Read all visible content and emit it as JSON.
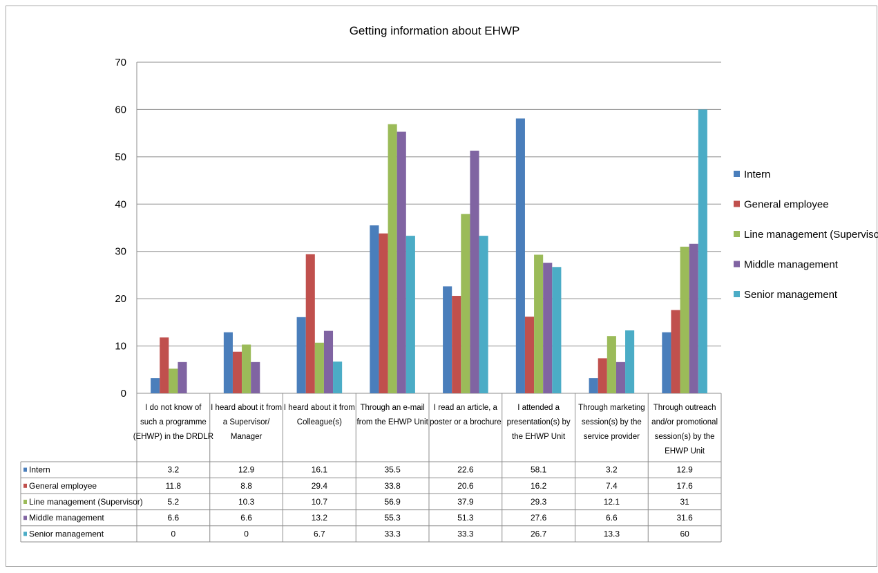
{
  "chart_data": {
    "type": "bar",
    "title": "Getting information about EHWP",
    "ylim": [
      0,
      70
    ],
    "yticks": [
      0,
      10,
      20,
      30,
      40,
      50,
      60,
      70
    ],
    "grid": true,
    "legend_position": "right",
    "data_table": true,
    "categories": [
      [
        "I do not know of",
        "such a programme",
        "(EHWP) in the DRDLR"
      ],
      [
        "I heard about it from",
        "a Supervisor/",
        "Manager"
      ],
      [
        "I heard about it from",
        "Colleague(s)"
      ],
      [
        "Through an e-mail",
        "from the EHWP Unit"
      ],
      [
        "I read an article, a",
        "poster or a brochure"
      ],
      [
        "I attended a",
        "presentation(s) by",
        "the EHWP Unit"
      ],
      [
        "Through marketing",
        "session(s) by the",
        "service provider"
      ],
      [
        "Through outreach",
        "and/or promotional",
        "session(s) by the",
        "EHWP Unit"
      ]
    ],
    "series": [
      {
        "name": "Intern",
        "color": "#4a7ebb",
        "values": [
          3.2,
          12.9,
          16.1,
          35.5,
          22.6,
          58.1,
          3.2,
          12.9
        ],
        "labels": [
          "3.2",
          "12.9",
          "16.1",
          "35.5",
          "22.6",
          "58.1",
          "3.2",
          "12.9"
        ]
      },
      {
        "name": "General employee",
        "color": "#c0504d",
        "values": [
          11.8,
          8.8,
          29.4,
          33.8,
          20.6,
          16.2,
          7.4,
          17.6
        ],
        "labels": [
          "11.8",
          "8.8",
          "29.4",
          "33.8",
          "20.6",
          "16.2",
          "7.4",
          "17.6"
        ]
      },
      {
        "name": "Line management (Supervisor)",
        "color": "#9bbb59",
        "values": [
          5.2,
          10.3,
          10.7,
          56.9,
          37.9,
          29.3,
          12.1,
          31
        ],
        "labels": [
          "5.2",
          "10.3",
          "10.7",
          "56.9",
          "37.9",
          "29.3",
          "12.1",
          "31"
        ]
      },
      {
        "name": "Middle management",
        "color": "#8064a2",
        "values": [
          6.6,
          6.6,
          13.2,
          55.3,
          51.3,
          27.6,
          6.6,
          31.6
        ],
        "labels": [
          "6.6",
          "6.6",
          "13.2",
          "55.3",
          "51.3",
          "27.6",
          "6.6",
          "31.6"
        ]
      },
      {
        "name": "Senior management",
        "color": "#4bacc6",
        "values": [
          0,
          0,
          6.7,
          33.3,
          33.3,
          26.7,
          13.3,
          60
        ],
        "labels": [
          "0",
          "0",
          "6.7",
          "33.3",
          "33.3",
          "26.7",
          "13.3",
          "60"
        ]
      }
    ]
  }
}
